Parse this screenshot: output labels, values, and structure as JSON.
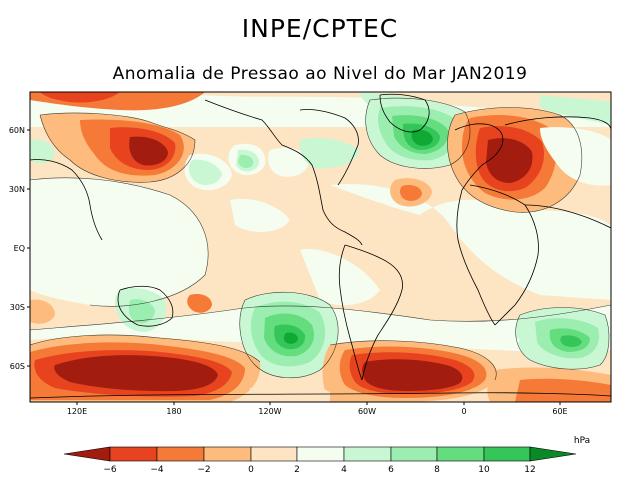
{
  "header": {
    "title": "INPE/CPTEC",
    "subtitle": "Anomalia de Pressao ao Nivel do Mar JAN2019"
  },
  "map": {
    "lat_labels": [
      "60N",
      "30N",
      "EQ",
      "30S",
      "60S"
    ],
    "lon_labels": [
      "120E",
      "180",
      "120W",
      "60W",
      "0",
      "60E"
    ]
  },
  "colorbar": {
    "unit": "hPa",
    "tick_labels": [
      "−6",
      "−4",
      "−2",
      "0",
      "2",
      "4",
      "6",
      "8",
      "10",
      "12"
    ],
    "colors": [
      "#a31c10",
      "#e8431f",
      "#f57a38",
      "#fdbc7e",
      "#fde4c2",
      "#f4fdf0",
      "#c9f7d4",
      "#9ceeb0",
      "#64dd7e",
      "#35c659",
      "#10a934",
      "#0a8a26"
    ]
  }
}
